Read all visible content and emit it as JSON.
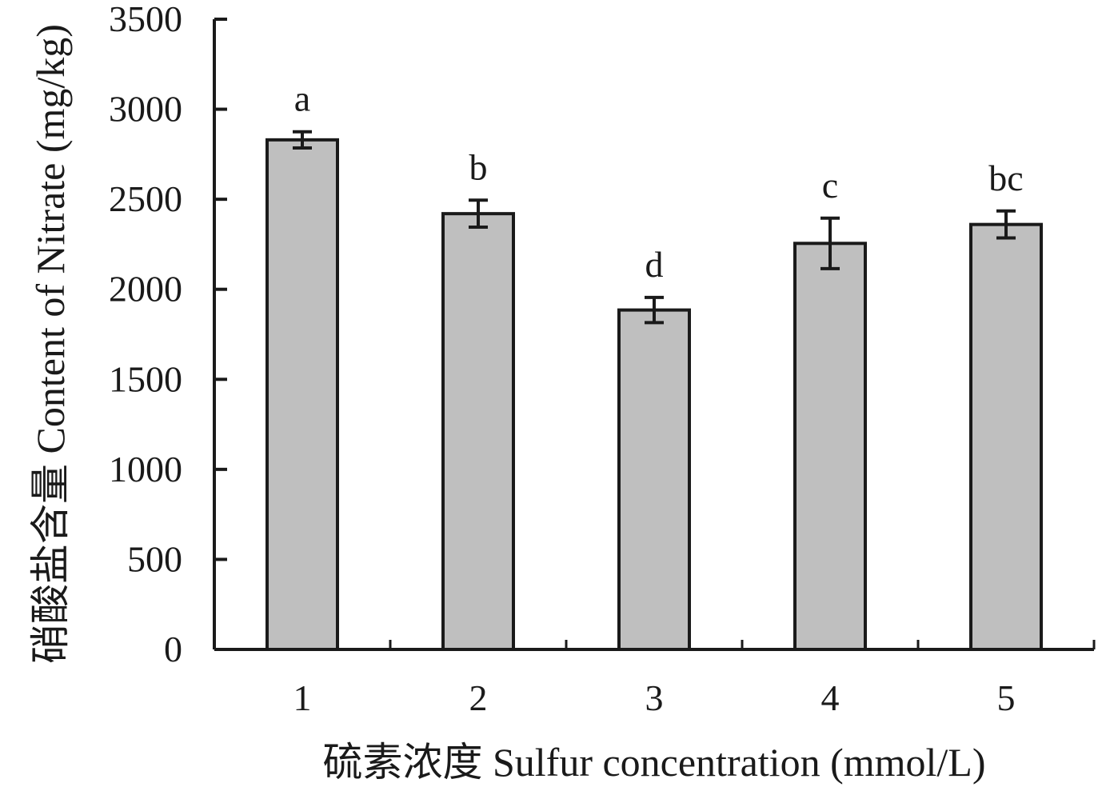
{
  "chart_data": {
    "type": "bar",
    "categories": [
      "1",
      "2",
      "3",
      "4",
      "5"
    ],
    "values": [
      2830,
      2420,
      1885,
      2255,
      2360
    ],
    "error": [
      45,
      75,
      70,
      140,
      75
    ],
    "significance_labels": [
      "a",
      "b",
      "d",
      "c",
      "bc"
    ],
    "xlabel": "硫素浓度 Sulfur concentration (mmol/L)",
    "ylabel": "硝酸盐含量 Content of Nitrate (mg/kg)",
    "ylim": [
      0,
      3500
    ],
    "yticks": [
      0,
      500,
      1000,
      1500,
      2000,
      2500,
      3000,
      3500
    ],
    "grid": false,
    "legend": "none",
    "colors": {
      "bar_fill": "#bfbfbf",
      "bar_stroke": "#1a1a1a",
      "axis": "#1a1a1a"
    }
  }
}
